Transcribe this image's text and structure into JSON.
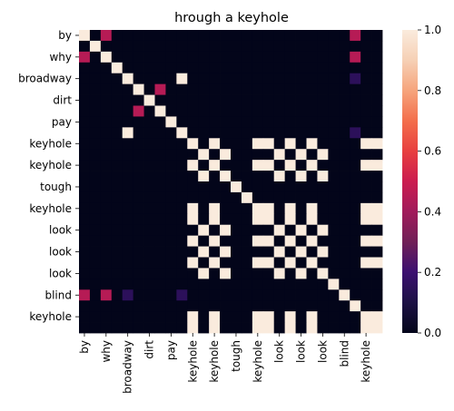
{
  "chart_data": {
    "type": "heatmap",
    "title": "hrough a keyhole",
    "xlabel": "",
    "ylabel": "",
    "x_tick_labels": [
      "by",
      "why",
      "broadway",
      "dirt",
      "pay",
      "keyhole",
      "keyhole",
      "tough",
      "keyhole",
      "look",
      "look",
      "look",
      "blind",
      "keyhole"
    ],
    "y_tick_labels": [
      "by",
      "why",
      "broadway",
      "dirt",
      "pay",
      "keyhole",
      "keyhole",
      "tough",
      "keyhole",
      "look",
      "look",
      "look",
      "blind",
      "keyhole"
    ],
    "n_tokens": 28,
    "colorbar": {
      "min": 0.0,
      "max": 1.0,
      "ticks": [
        "0.0",
        "0.2",
        "0.4",
        "0.6",
        "0.8",
        "1.0"
      ],
      "colormap": "rocket"
    },
    "matrix": [
      [
        1,
        0,
        0.45,
        0,
        0,
        0,
        0,
        0,
        0,
        0,
        0,
        0,
        0,
        0,
        0,
        0,
        0,
        0,
        0,
        0,
        0,
        0,
        0,
        0,
        0,
        0.45,
        0,
        0
      ],
      [
        0,
        1,
        0,
        0,
        0,
        0,
        0,
        0,
        0,
        0,
        0,
        0,
        0,
        0,
        0,
        0,
        0,
        0,
        0,
        0,
        0,
        0,
        0,
        0,
        0,
        0,
        0,
        0
      ],
      [
        0.45,
        0,
        1,
        0,
        0,
        0,
        0,
        0,
        0,
        0,
        0,
        0,
        0,
        0,
        0,
        0,
        0,
        0,
        0,
        0,
        0,
        0,
        0,
        0,
        0,
        0.45,
        0,
        0
      ],
      [
        0,
        0,
        0,
        1,
        0,
        0,
        0,
        0,
        0,
        0,
        0,
        0,
        0,
        0,
        0,
        0,
        0,
        0,
        0,
        0,
        0,
        0,
        0,
        0,
        0,
        0,
        0,
        0
      ],
      [
        0,
        0,
        0,
        0,
        1,
        0,
        0,
        0,
        0,
        1,
        0,
        0,
        0,
        0,
        0,
        0,
        0,
        0,
        0,
        0,
        0,
        0,
        0,
        0,
        0,
        0.15,
        0,
        0
      ],
      [
        0,
        0,
        0,
        0,
        0,
        1,
        0,
        0.45,
        0,
        0,
        0,
        0,
        0,
        0,
        0,
        0,
        0,
        0,
        0,
        0,
        0,
        0,
        0,
        0,
        0,
        0,
        0,
        0
      ],
      [
        0,
        0,
        0,
        0,
        0,
        0,
        1,
        0,
        0,
        0,
        0,
        0,
        0,
        0,
        0,
        0,
        0,
        0,
        0,
        0,
        0,
        0,
        0,
        0,
        0,
        0,
        0,
        0
      ],
      [
        0,
        0,
        0,
        0,
        0,
        0.45,
        0,
        1,
        0,
        0,
        0,
        0,
        0,
        0,
        0,
        0,
        0,
        0,
        0,
        0,
        0,
        0,
        0,
        0,
        0,
        0,
        0,
        0
      ],
      [
        0,
        0,
        0,
        0,
        0,
        0,
        0,
        0,
        1,
        0,
        0,
        0,
        0,
        0,
        0,
        0,
        0,
        0,
        0,
        0,
        0,
        0,
        0,
        0,
        0,
        0,
        0,
        0
      ],
      [
        0,
        0,
        0,
        0,
        1,
        0,
        0,
        0,
        0,
        1,
        0,
        0,
        0,
        0,
        0,
        0,
        0,
        0,
        0,
        0,
        0,
        0,
        0,
        0,
        0,
        0.15,
        0,
        0
      ],
      [
        0,
        0,
        0,
        0,
        0,
        0,
        0,
        0,
        0,
        0,
        1,
        0,
        1,
        0,
        0,
        0,
        1,
        1,
        0,
        1,
        0,
        1,
        0,
        0,
        0,
        0,
        1,
        1
      ],
      [
        0,
        0,
        0,
        0,
        0,
        0,
        0,
        0,
        0,
        0,
        0,
        1,
        0,
        1,
        0,
        0,
        0,
        0,
        1,
        0,
        1,
        0,
        1,
        0,
        0,
        0,
        0,
        0
      ],
      [
        0,
        0,
        0,
        0,
        0,
        0,
        0,
        0,
        0,
        0,
        1,
        0,
        1,
        0,
        0,
        0,
        1,
        1,
        0,
        1,
        0,
        1,
        0,
        0,
        0,
        0,
        1,
        1
      ],
      [
        0,
        0,
        0,
        0,
        0,
        0,
        0,
        0,
        0,
        0,
        0,
        1,
        0,
        1,
        0,
        0,
        0,
        0,
        1,
        0,
        1,
        0,
        1,
        0,
        0,
        0,
        0,
        0
      ],
      [
        0,
        0,
        0,
        0,
        0,
        0,
        0,
        0,
        0,
        0,
        0,
        0,
        0,
        0,
        1,
        0,
        0,
        0,
        0,
        0,
        0,
        0,
        0,
        0,
        0,
        0,
        0,
        0
      ],
      [
        0,
        0,
        0,
        0,
        0,
        0,
        0,
        0,
        0,
        0,
        0,
        0,
        0,
        0,
        0,
        1,
        0,
        0,
        0,
        0,
        0,
        0,
        0,
        0,
        0,
        0,
        0,
        0
      ],
      [
        0,
        0,
        0,
        0,
        0,
        0,
        0,
        0,
        0,
        0,
        1,
        0,
        1,
        0,
        0,
        0,
        1,
        1,
        0,
        1,
        0,
        1,
        0,
        0,
        0,
        0,
        1,
        1
      ],
      [
        0,
        0,
        0,
        0,
        0,
        0,
        0,
        0,
        0,
        0,
        1,
        0,
        1,
        0,
        0,
        0,
        1,
        1,
        0,
        1,
        0,
        1,
        0,
        0,
        0,
        0,
        1,
        1
      ],
      [
        0,
        0,
        0,
        0,
        0,
        0,
        0,
        0,
        0,
        0,
        0,
        1,
        0,
        1,
        0,
        0,
        0,
        0,
        1,
        0,
        1,
        0,
        1,
        0,
        0,
        0,
        0,
        0
      ],
      [
        0,
        0,
        0,
        0,
        0,
        0,
        0,
        0,
        0,
        0,
        1,
        0,
        1,
        0,
        0,
        0,
        1,
        1,
        0,
        1,
        0,
        1,
        0,
        0,
        0,
        0,
        1,
        1
      ],
      [
        0,
        0,
        0,
        0,
        0,
        0,
        0,
        0,
        0,
        0,
        0,
        1,
        0,
        1,
        0,
        0,
        0,
        0,
        1,
        0,
        1,
        0,
        1,
        0,
        0,
        0,
        0,
        0
      ],
      [
        0,
        0,
        0,
        0,
        0,
        0,
        0,
        0,
        0,
        0,
        1,
        0,
        1,
        0,
        0,
        0,
        1,
        1,
        0,
        1,
        0,
        1,
        0,
        0,
        0,
        0,
        1,
        1
      ],
      [
        0,
        0,
        0,
        0,
        0,
        0,
        0,
        0,
        0,
        0,
        0,
        1,
        0,
        1,
        0,
        0,
        0,
        0,
        1,
        0,
        1,
        0,
        1,
        0,
        0,
        0,
        0,
        0
      ],
      [
        0,
        0,
        0,
        0,
        0,
        0,
        0,
        0,
        0,
        0,
        0,
        0,
        0,
        0,
        0,
        0,
        0,
        0,
        0,
        0,
        0,
        0,
        0,
        1,
        0,
        0,
        0,
        0
      ],
      [
        0.45,
        0,
        0.45,
        0,
        0.15,
        0,
        0,
        0,
        0,
        0.15,
        0,
        0,
        0,
        0,
        0,
        0,
        0,
        0,
        0,
        0,
        0,
        0,
        0,
        0,
        1,
        0,
        0,
        0
      ],
      [
        0,
        0,
        0,
        0,
        0,
        0,
        0,
        0,
        0,
        0,
        0,
        0,
        0,
        0,
        0,
        0,
        0,
        0,
        0,
        0,
        0,
        0,
        0,
        0,
        0,
        1,
        0,
        0
      ],
      [
        0,
        0,
        0,
        0,
        0,
        0,
        0,
        0,
        0,
        0,
        1,
        0,
        1,
        0,
        0,
        0,
        1,
        1,
        0,
        1,
        0,
        1,
        0,
        0,
        0,
        0,
        1,
        1
      ],
      [
        0,
        0,
        0,
        0,
        0,
        0,
        0,
        0,
        0,
        0,
        1,
        0,
        1,
        0,
        0,
        0,
        1,
        1,
        0,
        1,
        0,
        1,
        0,
        0,
        0,
        0,
        1,
        1
      ]
    ]
  }
}
